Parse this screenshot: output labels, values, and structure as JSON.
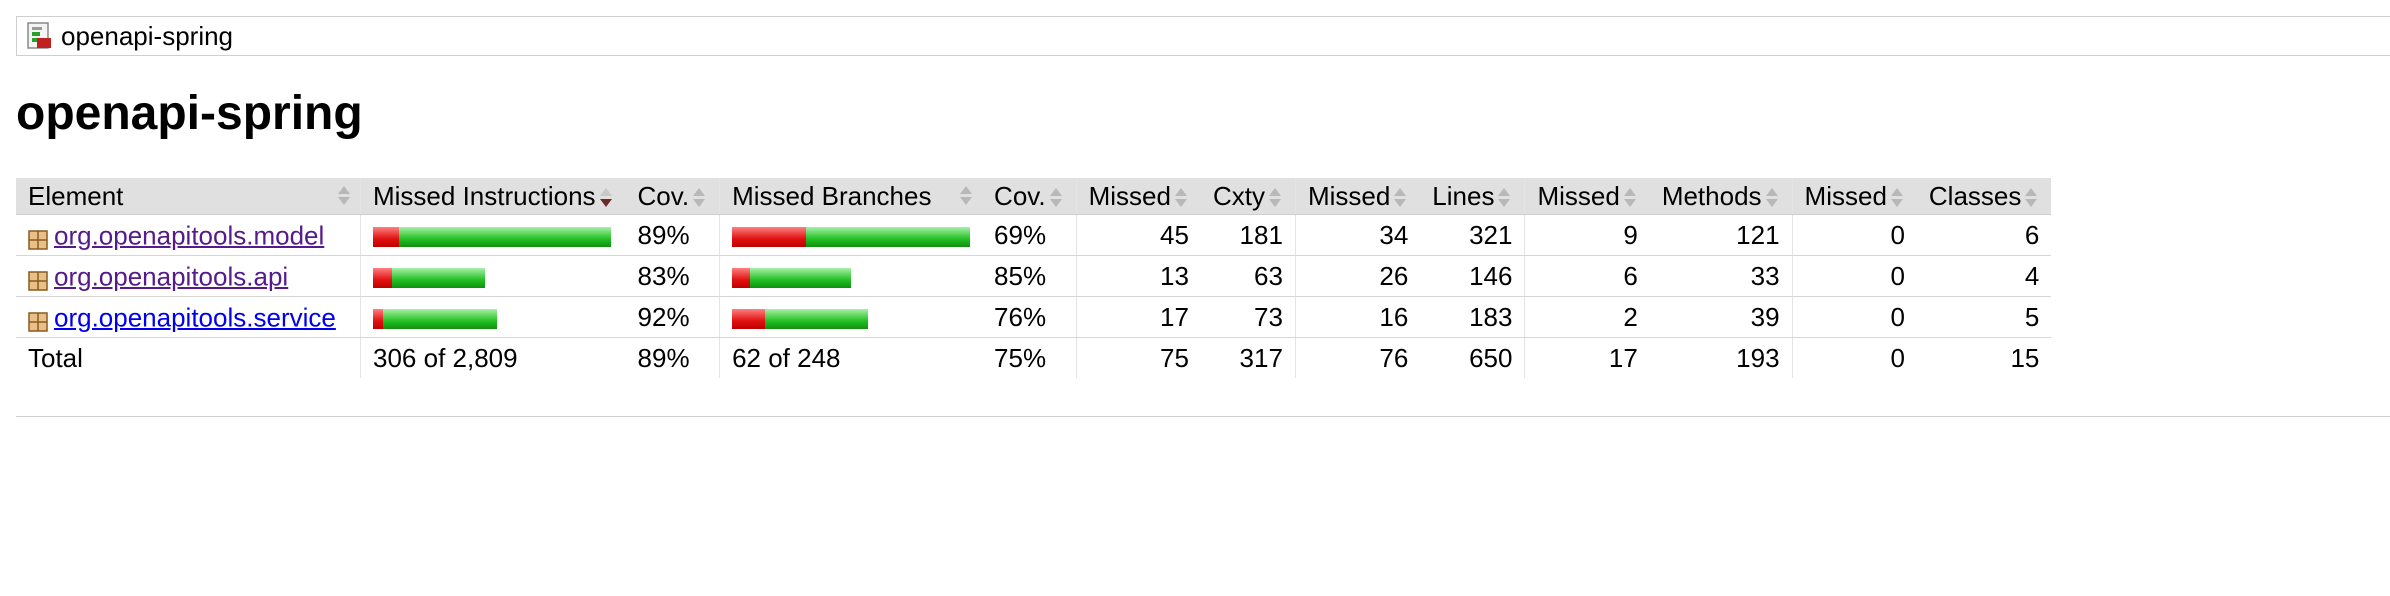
{
  "breadcrumb": {
    "label": "openapi-spring",
    "icon": "report-icon"
  },
  "page_title": "openapi-spring",
  "colors": {
    "missed": "#e01010",
    "covered": "#22c022",
    "header_bg": "#e0e0e0",
    "link_visited": "#551a8b",
    "link": "#0000ee"
  },
  "table": {
    "headers": {
      "element": "Element",
      "missed_instructions": "Missed Instructions",
      "cov_instructions": "Cov.",
      "missed_branches": "Missed Branches",
      "cov_branches": "Cov.",
      "missed_cxty": "Missed",
      "cxty": "Cxty",
      "missed_lines": "Missed",
      "lines": "Lines",
      "missed_methods": "Missed",
      "methods": "Methods",
      "missed_classes": "Missed",
      "classes": "Classes"
    },
    "rows": [
      {
        "name": "org.openapitools.model",
        "instr_missed_frac": 0.11,
        "instr_covered_frac": 0.89,
        "instr_scale": 1.0,
        "instr_cov": "89%",
        "branch_missed_frac": 0.31,
        "branch_covered_frac": 0.69,
        "branch_scale": 1.0,
        "branch_cov": "69%",
        "missed_cxty": "45",
        "cxty": "181",
        "missed_lines": "34",
        "lines": "321",
        "missed_methods": "9",
        "methods": "121",
        "missed_classes": "0",
        "classes": "6"
      },
      {
        "name": "org.openapitools.api",
        "instr_missed_frac": 0.17,
        "instr_covered_frac": 0.83,
        "instr_scale": 0.47,
        "instr_cov": "83%",
        "branch_missed_frac": 0.15,
        "branch_covered_frac": 0.85,
        "branch_scale": 0.5,
        "branch_cov": "85%",
        "missed_cxty": "13",
        "cxty": "63",
        "missed_lines": "26",
        "lines": "146",
        "missed_methods": "6",
        "methods": "33",
        "missed_classes": "0",
        "classes": "4"
      },
      {
        "name": "org.openapitools.service",
        "instr_missed_frac": 0.08,
        "instr_covered_frac": 0.92,
        "instr_scale": 0.52,
        "instr_cov": "92%",
        "branch_missed_frac": 0.24,
        "branch_covered_frac": 0.76,
        "branch_scale": 0.57,
        "branch_cov": "76%",
        "missed_cxty": "17",
        "cxty": "73",
        "missed_lines": "16",
        "lines": "183",
        "missed_methods": "2",
        "methods": "39",
        "missed_classes": "0",
        "classes": "5"
      }
    ],
    "total": {
      "label": "Total",
      "instructions": "306 of 2,809",
      "instr_cov": "89%",
      "branches": "62 of 248",
      "branch_cov": "75%",
      "missed_cxty": "75",
      "cxty": "317",
      "missed_lines": "76",
      "lines": "650",
      "missed_methods": "17",
      "methods": "193",
      "missed_classes": "0",
      "classes": "15"
    }
  }
}
